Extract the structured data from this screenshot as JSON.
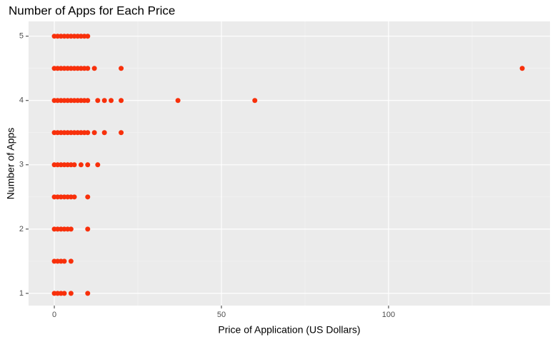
{
  "chart_data": {
    "type": "scatter",
    "title": "Number of Apps for Each Price",
    "x_label": "Price of Application (US Dollars)",
    "y_label": "Number of Apps",
    "color": "#f8300b",
    "grid": true,
    "xlim": [
      -7.7,
      148.3
    ],
    "ylim": [
      0.81,
      5.23
    ],
    "xticks": [
      0,
      50,
      100
    ],
    "yticks": [
      1,
      2,
      3,
      4,
      5
    ],
    "xminor": [
      25,
      75,
      125
    ],
    "yminor": [
      1.5,
      2.5,
      3.5,
      4.5
    ],
    "x": [
      0,
      0.99,
      1.99,
      2.99,
      3.99,
      4.99,
      5.99,
      6.99,
      7.99,
      8.99,
      9.99,
      0,
      0.99,
      1.99,
      2.99,
      3.99,
      4.99,
      5.99,
      6.99,
      7.99,
      8.99,
      9.99,
      11.99,
      19.99,
      139.99,
      0,
      0.99,
      1.99,
      2.99,
      3.99,
      4.99,
      5.99,
      6.99,
      7.99,
      8.99,
      9.99,
      12.99,
      14.99,
      16.99,
      19.99,
      36.99,
      59.99,
      0,
      0.99,
      1.99,
      2.99,
      3.99,
      4.99,
      5.99,
      6.99,
      7.99,
      8.99,
      9.99,
      11.99,
      14.99,
      19.99,
      0,
      0.99,
      1.99,
      2.99,
      3.99,
      4.99,
      5.99,
      7.99,
      9.99,
      12.99,
      0,
      0.99,
      1.99,
      2.99,
      3.99,
      4.99,
      5.99,
      9.99,
      0,
      0.99,
      1.99,
      2.99,
      3.99,
      4.99,
      9.99,
      0,
      0.99,
      1.99,
      2.99,
      4.99,
      0,
      0.99,
      1.99,
      2.99,
      4.99,
      9.99
    ],
    "y": [
      5,
      5,
      5,
      5,
      5,
      5,
      5,
      5,
      5,
      5,
      5,
      4.5,
      4.5,
      4.5,
      4.5,
      4.5,
      4.5,
      4.5,
      4.5,
      4.5,
      4.5,
      4.5,
      4.5,
      4.5,
      4.5,
      4,
      4,
      4,
      4,
      4,
      4,
      4,
      4,
      4,
      4,
      4,
      4,
      4,
      4,
      4,
      4,
      4,
      3.5,
      3.5,
      3.5,
      3.5,
      3.5,
      3.5,
      3.5,
      3.5,
      3.5,
      3.5,
      3.5,
      3.5,
      3.5,
      3.5,
      3,
      3,
      3,
      3,
      3,
      3,
      3,
      3,
      3,
      3,
      2.5,
      2.5,
      2.5,
      2.5,
      2.5,
      2.5,
      2.5,
      2.5,
      2,
      2,
      2,
      2,
      2,
      2,
      2,
      1.5,
      1.5,
      1.5,
      1.5,
      1.5,
      1,
      1,
      1,
      1,
      1,
      1
    ]
  }
}
